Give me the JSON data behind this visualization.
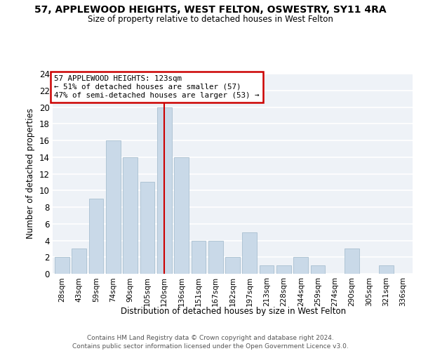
{
  "title1": "57, APPLEWOOD HEIGHTS, WEST FELTON, OSWESTRY, SY11 4RA",
  "title2": "Size of property relative to detached houses in West Felton",
  "xlabel": "Distribution of detached houses by size in West Felton",
  "ylabel": "Number of detached properties",
  "categories": [
    "28sqm",
    "43sqm",
    "59sqm",
    "74sqm",
    "90sqm",
    "105sqm",
    "120sqm",
    "136sqm",
    "151sqm",
    "167sqm",
    "182sqm",
    "197sqm",
    "213sqm",
    "228sqm",
    "244sqm",
    "259sqm",
    "274sqm",
    "290sqm",
    "305sqm",
    "321sqm",
    "336sqm"
  ],
  "values": [
    2,
    3,
    9,
    16,
    14,
    11,
    20,
    14,
    4,
    4,
    2,
    5,
    1,
    1,
    2,
    1,
    0,
    3,
    0,
    1,
    0
  ],
  "bar_color": "#c9d9e8",
  "bar_edge_color": "#a8bfd0",
  "vline_index": 6,
  "vline_color": "#cc0000",
  "box_edge_color": "#cc0000",
  "annotation_line1": "57 APPLEWOOD HEIGHTS: 123sqm",
  "annotation_line2": "← 51% of detached houses are smaller (57)",
  "annotation_line3": "47% of semi-detached houses are larger (53) →",
  "ylim": [
    0,
    24
  ],
  "yticks": [
    0,
    2,
    4,
    6,
    8,
    10,
    12,
    14,
    16,
    18,
    20,
    22,
    24
  ],
  "footnote1": "Contains HM Land Registry data © Crown copyright and database right 2024.",
  "footnote2": "Contains public sector information licensed under the Open Government Licence v3.0.",
  "bg_color": "#eef2f7",
  "grid_color": "#ffffff"
}
